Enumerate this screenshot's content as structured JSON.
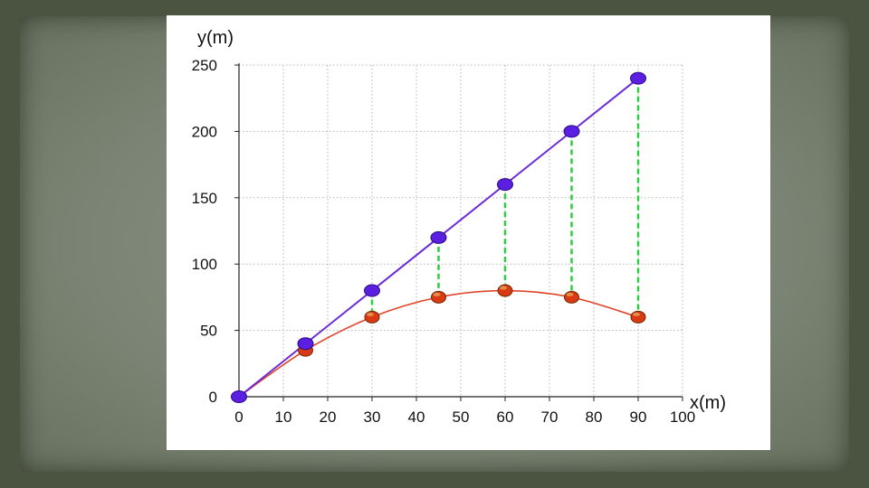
{
  "chart_data": {
    "type": "scatter",
    "title": "",
    "xlabel": "x(m)",
    "ylabel": "y(m)",
    "xlim": [
      0,
      100
    ],
    "ylim": [
      0,
      250
    ],
    "x_ticks": [
      0,
      10,
      20,
      30,
      40,
      50,
      60,
      70,
      80,
      90,
      100
    ],
    "y_ticks": [
      0,
      50,
      100,
      150,
      200,
      250
    ],
    "grid": true,
    "legend": "none",
    "series": [
      {
        "style": "line-with-markers",
        "color": "#6a2bd9",
        "marker_color": "#5a1fe0",
        "x": [
          0,
          15,
          30,
          45,
          60,
          75,
          90
        ],
        "y": [
          0,
          40,
          80,
          120,
          160,
          200,
          240
        ]
      },
      {
        "style": "curve-with-markers",
        "color": "#e0442a",
        "marker_color": "#d93a14",
        "x": [
          0,
          15,
          30,
          45,
          60,
          75,
          90
        ],
        "y": [
          0,
          35,
          60,
          75,
          80,
          75,
          60
        ]
      }
    ],
    "drop_lines": {
      "color": "#2ecc40",
      "x": [
        30,
        45,
        60,
        75,
        90
      ]
    }
  }
}
